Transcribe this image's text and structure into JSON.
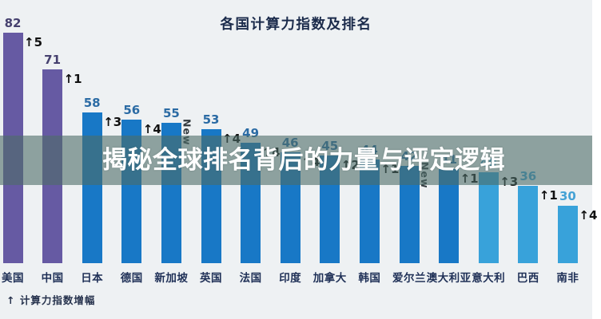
{
  "page": {
    "background": "#eef1f3"
  },
  "banner": {
    "text": "揭秘全球排名背后的力量与评定逻辑",
    "background": "rgba(77,109,103,0.60)",
    "text_color": "#ffffff"
  },
  "chart_data": {
    "type": "bar",
    "title": "各国计算力指数及排名",
    "legend": "↑ 计算力指数增幅",
    "legend_position": "bottom-left",
    "grid": false,
    "ylim": [
      0,
      90
    ],
    "categories": [
      "美国",
      "中国",
      "日本",
      "德国",
      "新加坡",
      "英国",
      "法国",
      "印度",
      "加拿大",
      "韩国",
      "爱尔兰",
      "澳大利亚",
      "意大利",
      "巴西",
      "南非"
    ],
    "values": [
      82,
      71,
      58,
      56,
      55,
      53,
      49,
      46,
      45,
      44,
      42,
      41,
      40,
      36,
      30
    ],
    "annotations": [
      "↑5",
      "↑1",
      "↑3",
      "↑4",
      "New",
      "↑4",
      "↑4",
      "↑4",
      "↑2",
      "↑1",
      "New",
      "↑1",
      "↑3",
      "↑1",
      "↑4"
    ],
    "bar_tiers": [
      "leader",
      "leader",
      "mid",
      "mid",
      "mid",
      "mid",
      "mid",
      "mid",
      "mid",
      "mid",
      "mid",
      "mid",
      "low",
      "low",
      "low"
    ],
    "colors": {
      "leader_bar": "#665aa3",
      "mid_bar": "#1878c6",
      "low_bar": "#38a2da",
      "leader_value_text": "#45406e",
      "mid_value_text": "#2b6ba4",
      "low_value_text": "#45a2d5",
      "annotation_text": "#111111",
      "axis_label_text": "#1f3057",
      "title_text": "#1b2b4b"
    }
  }
}
